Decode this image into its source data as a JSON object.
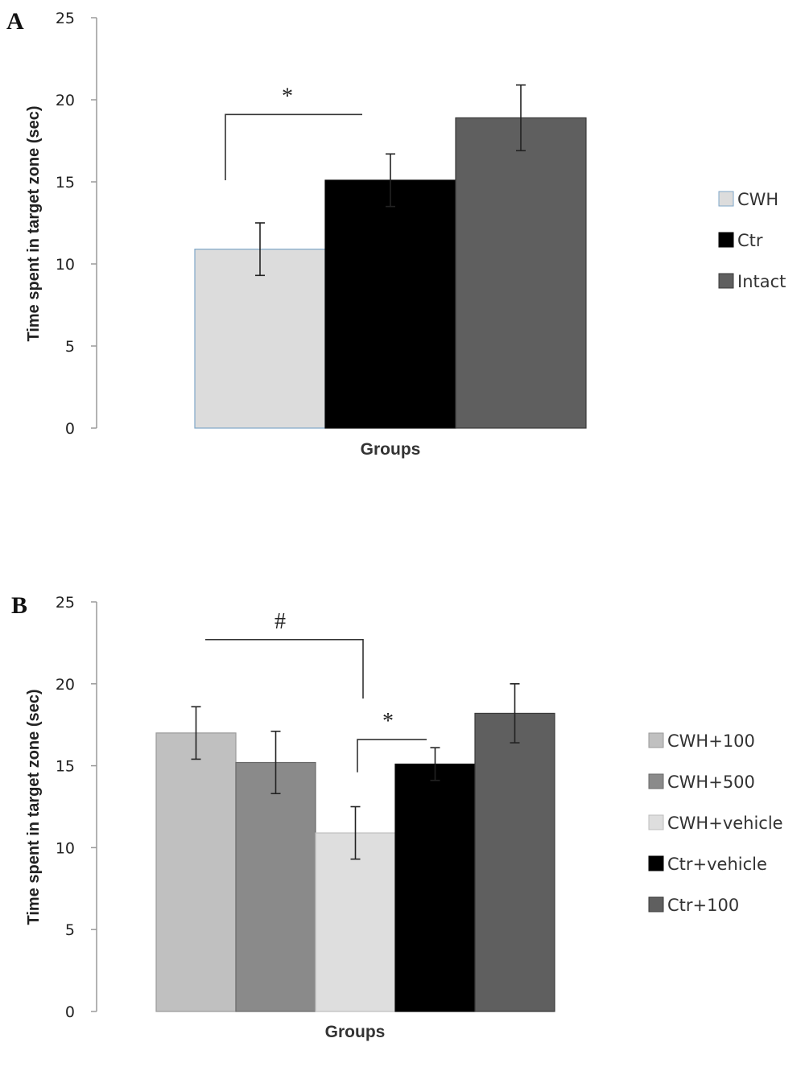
{
  "chart_data": [
    {
      "type": "bar",
      "panel": "A",
      "ylabel": "Time spent in target zone (sec)",
      "xlabel": "Groups",
      "ylim": [
        0,
        25
      ],
      "yticks": [
        "0",
        "5",
        "10",
        "15",
        "20",
        "25"
      ],
      "legend_placement": "right",
      "series": [
        {
          "name": "CWH",
          "value": 10.9,
          "error": 1.6,
          "color": "#dcdcdc",
          "stroke": "#7fa7c9"
        },
        {
          "name": "Ctr",
          "value": 15.1,
          "error": 1.6,
          "color": "#000000",
          "stroke": "#000000"
        },
        {
          "name": "Intact",
          "value": 18.9,
          "error": 2.0,
          "color": "#5f5f5f",
          "stroke": "#3a3a3a"
        }
      ],
      "annotations": [
        {
          "text": "*",
          "from": 0,
          "to": 1
        }
      ]
    },
    {
      "type": "bar",
      "panel": "B",
      "ylabel": "Time spent in target zone (sec)",
      "xlabel": "Groups",
      "ylim": [
        0,
        25
      ],
      "yticks": [
        "0",
        "5",
        "10",
        "15",
        "20",
        "25"
      ],
      "legend_placement": "right",
      "series": [
        {
          "name": "CWH+100",
          "value": 17.0,
          "error": 1.6,
          "color": "#c0c0c0",
          "stroke": "#9a9a9a"
        },
        {
          "name": "CWH+500",
          "value": 15.2,
          "error": 1.9,
          "color": "#8a8a8a",
          "stroke": "#6a6a6a"
        },
        {
          "name": "CWH+vehicle",
          "value": 10.9,
          "error": 1.6,
          "color": "#dedede",
          "stroke": "#bdbdbd"
        },
        {
          "name": "Ctr+vehicle",
          "value": 15.1,
          "error": 1.0,
          "color": "#000000",
          "stroke": "#000000"
        },
        {
          "name": "Ctr+100",
          "value": 18.2,
          "error": 1.8,
          "color": "#5f5f5f",
          "stroke": "#3a3a3a"
        }
      ],
      "annotations": [
        {
          "text": "#",
          "from": 0,
          "to": 2
        },
        {
          "text": "*",
          "from": 2,
          "to": 3
        }
      ]
    }
  ]
}
